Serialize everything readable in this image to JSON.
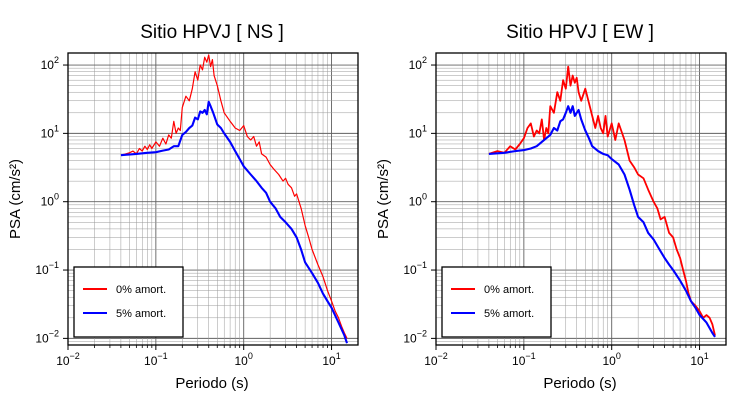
{
  "chart_data": [
    {
      "type": "line",
      "title": "Sitio HPVJ [ NS ]",
      "xlabel": "Periodo (s)",
      "ylabel": "PSA (cm/s²)",
      "xscale": "log",
      "yscale": "log",
      "xlim": [
        0.01,
        20
      ],
      "ylim": [
        0.008,
        150
      ],
      "grid": true,
      "legend_position": "bottom-left",
      "xticks": [
        {
          "value": 0.01,
          "base": "10",
          "exp": "−2"
        },
        {
          "value": 0.1,
          "base": "10",
          "exp": "−1"
        },
        {
          "value": 1,
          "base": "10",
          "exp": "0"
        },
        {
          "value": 10,
          "base": "10",
          "exp": "1"
        }
      ],
      "yticks": [
        {
          "value": 0.01,
          "base": "10",
          "exp": "−2"
        },
        {
          "value": 0.1,
          "base": "10",
          "exp": "−1"
        },
        {
          "value": 1,
          "base": "10",
          "exp": "0"
        },
        {
          "value": 10,
          "base": "10",
          "exp": "1"
        },
        {
          "value": 100,
          "base": "10",
          "exp": "2"
        }
      ],
      "series": [
        {
          "name": "0% amort.",
          "color": "#ff0000",
          "x": [
            0.04,
            0.05,
            0.055,
            0.06,
            0.065,
            0.07,
            0.075,
            0.08,
            0.085,
            0.09,
            0.1,
            0.11,
            0.12,
            0.13,
            0.14,
            0.15,
            0.16,
            0.17,
            0.18,
            0.19,
            0.2,
            0.22,
            0.24,
            0.26,
            0.28,
            0.3,
            0.32,
            0.34,
            0.36,
            0.38,
            0.4,
            0.42,
            0.44,
            0.46,
            0.5,
            0.55,
            0.6,
            0.7,
            0.8,
            0.9,
            1.0,
            1.1,
            1.2,
            1.3,
            1.4,
            1.5,
            1.6,
            1.8,
            2.0,
            2.2,
            2.5,
            2.8,
            3.0,
            3.2,
            3.5,
            3.8,
            4.0,
            4.5,
            5.0,
            5.5,
            6.0,
            7.0,
            8.0,
            9.0,
            10.0,
            11.0,
            12.0,
            13.0,
            14.0,
            15.0
          ],
          "y": [
            4.8,
            5.2,
            5.5,
            5.0,
            6.0,
            5.5,
            6.5,
            5.8,
            6.8,
            6.0,
            7.5,
            6.5,
            8.5,
            7.0,
            9.5,
            8.5,
            15,
            10,
            12,
            11,
            24,
            35,
            30,
            45,
            80,
            60,
            100,
            85,
            130,
            110,
            140,
            95,
            120,
            70,
            50,
            30,
            20,
            15,
            12,
            11,
            13,
            9,
            8,
            9,
            6.5,
            7.5,
            5,
            4.5,
            3.5,
            3.0,
            2.5,
            2.0,
            2.2,
            1.8,
            1.6,
            1.2,
            1.3,
            0.8,
            0.45,
            0.3,
            0.2,
            0.12,
            0.08,
            0.05,
            0.035,
            0.025,
            0.02,
            0.015,
            0.012,
            0.01
          ]
        },
        {
          "name": "5% amort.",
          "color": "#0000ff",
          "x": [
            0.04,
            0.06,
            0.08,
            0.1,
            0.12,
            0.14,
            0.16,
            0.18,
            0.2,
            0.22,
            0.24,
            0.26,
            0.28,
            0.3,
            0.32,
            0.34,
            0.36,
            0.38,
            0.4,
            0.42,
            0.45,
            0.5,
            0.55,
            0.6,
            0.7,
            0.8,
            0.9,
            1.0,
            1.2,
            1.4,
            1.6,
            1.8,
            2.0,
            2.3,
            2.6,
            3.0,
            3.5,
            4.0,
            4.5,
            5.0,
            6.0,
            7.0,
            8.0,
            9.0,
            10.0,
            12.0,
            14.0,
            15.0
          ],
          "y": [
            4.8,
            5.0,
            5.2,
            5.3,
            5.6,
            5.8,
            6.5,
            6.5,
            9.5,
            10.5,
            12,
            13,
            17,
            16,
            21,
            20,
            22,
            19,
            29,
            25,
            20,
            13.5,
            12,
            10,
            7.5,
            5.5,
            4.2,
            3.3,
            2.5,
            2.0,
            1.6,
            1.35,
            1.0,
            0.8,
            0.6,
            0.5,
            0.4,
            0.3,
            0.2,
            0.13,
            0.09,
            0.065,
            0.045,
            0.035,
            0.028,
            0.017,
            0.011,
            0.0085
          ]
        }
      ]
    },
    {
      "type": "line",
      "title": "Sitio HPVJ [ EW ]",
      "xlabel": "Periodo (s)",
      "ylabel": "PSA (cm/s²)",
      "xscale": "log",
      "yscale": "log",
      "xlim": [
        0.01,
        20
      ],
      "ylim": [
        0.008,
        150
      ],
      "grid": true,
      "legend_position": "bottom-left",
      "xticks": [
        {
          "value": 0.01,
          "base": "10",
          "exp": "−2"
        },
        {
          "value": 0.1,
          "base": "10",
          "exp": "−1"
        },
        {
          "value": 1,
          "base": "10",
          "exp": "0"
        },
        {
          "value": 10,
          "base": "10",
          "exp": "1"
        }
      ],
      "yticks": [
        {
          "value": 0.01,
          "base": "10",
          "exp": "−2"
        },
        {
          "value": 0.1,
          "base": "10",
          "exp": "−1"
        },
        {
          "value": 1,
          "base": "10",
          "exp": "0"
        },
        {
          "value": 10,
          "base": "10",
          "exp": "1"
        },
        {
          "value": 100,
          "base": "10",
          "exp": "2"
        }
      ],
      "series": [
        {
          "name": "0% amort.",
          "color": "#ff0000",
          "x": [
            0.04,
            0.05,
            0.06,
            0.07,
            0.08,
            0.09,
            0.1,
            0.11,
            0.12,
            0.13,
            0.14,
            0.15,
            0.16,
            0.17,
            0.18,
            0.19,
            0.2,
            0.22,
            0.24,
            0.26,
            0.28,
            0.3,
            0.32,
            0.34,
            0.36,
            0.38,
            0.4,
            0.42,
            0.45,
            0.5,
            0.55,
            0.6,
            0.65,
            0.7,
            0.75,
            0.8,
            0.85,
            0.9,
            1.0,
            1.1,
            1.2,
            1.4,
            1.6,
            1.8,
            2.0,
            2.3,
            2.6,
            3.0,
            3.3,
            3.6,
            4.0,
            4.5,
            5.0,
            5.5,
            6.0,
            6.5,
            7.0,
            7.5,
            8.0,
            9.0,
            10.0,
            11.0,
            12.0,
            13.0,
            14.0,
            15.0
          ],
          "y": [
            5.0,
            5.5,
            5.2,
            6.5,
            5.8,
            7.0,
            8.5,
            12,
            14,
            9,
            11,
            10,
            16,
            8,
            12,
            10,
            25,
            20,
            40,
            30,
            60,
            45,
            95,
            50,
            70,
            55,
            65,
            40,
            30,
            45,
            28,
            18,
            12,
            18,
            12,
            10,
            18,
            9,
            14,
            8,
            14,
            8,
            4,
            3.2,
            2.5,
            2.2,
            1.5,
            1.0,
            0.8,
            0.55,
            0.6,
            0.35,
            0.3,
            0.2,
            0.15,
            0.1,
            0.07,
            0.045,
            0.035,
            0.03,
            0.025,
            0.02,
            0.022,
            0.02,
            0.016,
            0.011
          ]
        },
        {
          "name": "5% amort.",
          "color": "#0000ff",
          "x": [
            0.04,
            0.06,
            0.08,
            0.1,
            0.12,
            0.14,
            0.16,
            0.18,
            0.2,
            0.22,
            0.24,
            0.26,
            0.28,
            0.3,
            0.32,
            0.34,
            0.36,
            0.38,
            0.4,
            0.42,
            0.45,
            0.5,
            0.55,
            0.6,
            0.7,
            0.8,
            0.9,
            1.0,
            1.2,
            1.4,
            1.6,
            1.8,
            2.0,
            2.3,
            2.6,
            3.0,
            3.5,
            4.0,
            4.5,
            5.0,
            6.0,
            7.0,
            8.0,
            9.0,
            10.0,
            12.0,
            14.0,
            15.0
          ],
          "y": [
            5.0,
            5.2,
            5.5,
            5.7,
            6.0,
            6.5,
            7.5,
            8.5,
            9.5,
            12,
            11,
            15,
            16,
            20,
            25,
            20,
            25,
            18,
            20,
            22,
            16,
            11,
            8.5,
            6.5,
            5.5,
            5.0,
            4.8,
            4.2,
            3.5,
            2.5,
            1.5,
            0.9,
            0.6,
            0.5,
            0.35,
            0.28,
            0.2,
            0.15,
            0.12,
            0.1,
            0.07,
            0.05,
            0.035,
            0.028,
            0.022,
            0.017,
            0.012,
            0.0105
          ]
        }
      ]
    }
  ]
}
